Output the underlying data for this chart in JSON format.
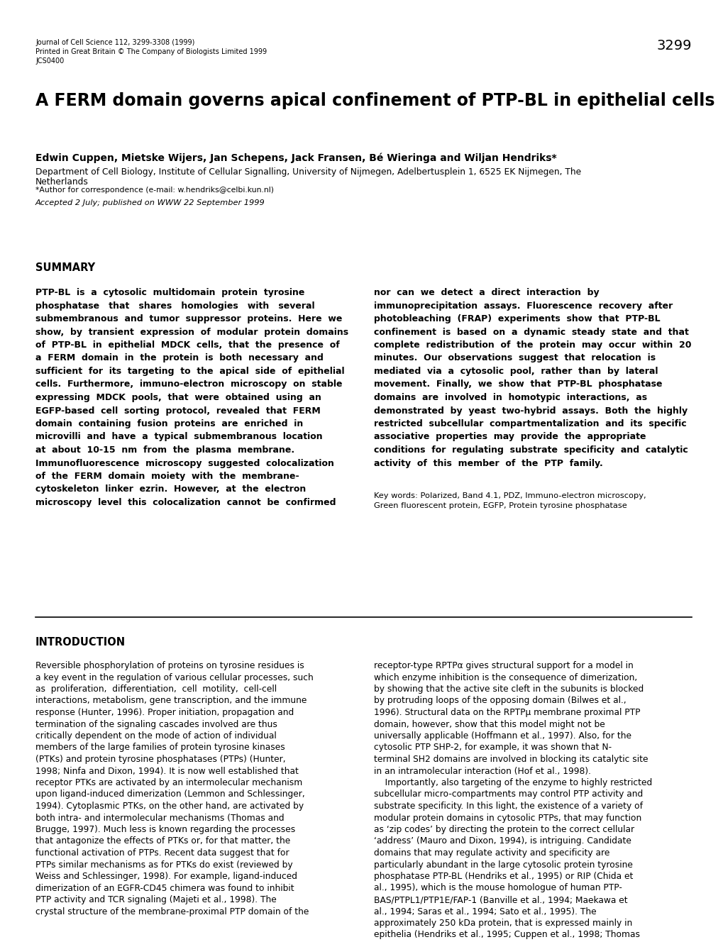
{
  "background_color": "#ffffff",
  "page_width": 10.2,
  "page_height": 13.28,
  "dpi": 100,
  "journal_line1": "Journal of Cell Science 112, 3299-3308 (1999)",
  "journal_line2": "Printed in Great Britain © The Company of Biologists Limited 1999",
  "journal_line3": "JCS0400",
  "page_number": "3299",
  "title": "A FERM domain governs apical confinement of PTP-BL in epithelial cells",
  "authors": "Edwin Cuppen, Mietske Wijers, Jan Schepens, Jack Fransen, Bé Wieringa and Wiljan Hendriks*",
  "affiliation_line1": "Department of Cell Biology, Institute of Cellular Signalling, University of Nijmegen, Adelbertusplein 1, 6525 EK Nijmegen, The",
  "affiliation_line2": "Netherlands",
  "correspondence": "*Author for correspondence (e-mail: w.hendriks@celbi.kun.nl)",
  "accepted": "Accepted 2 July; published on WWW 22 September 1999",
  "summary_header": "SUMMARY",
  "summary_left_lines": [
    "PTP-BL  is  a  cytosolic  multidomain  protein  tyrosine",
    "phosphatase   that   shares   homologies   with   several",
    "submembranous  and  tumor  suppressor  proteins.  Here  we",
    "show,  by  transient  expression  of  modular  protein  domains",
    "of  PTP-BL  in  epithelial  MDCK  cells,  that  the  presence  of",
    "a  FERM  domain  in  the  protein  is  both  necessary  and",
    "sufficient  for  its  targeting  to  the  apical  side  of  epithelial",
    "cells.  Furthermore,  immuno-electron  microscopy  on  stable",
    "expressing  MDCK  pools,  that  were  obtained  using  an",
    "EGFP-based  cell  sorting  protocol,  revealed  that  FERM",
    "domain  containing  fusion  proteins  are  enriched  in",
    "microvilli  and  have  a  typical  submembranous  location",
    "at  about  10-15  nm  from  the  plasma  membrane.",
    "Immunofluorescence  microscopy  suggested  colocalization",
    "of  the  FERM  domain  moiety  with  the  membrane-",
    "cytoskeleton  linker  ezrin.  However,  at  the  electron",
    "microscopy  level  this  colocalization  cannot  be  confirmed"
  ],
  "summary_right_lines": [
    "nor  can  we  detect  a  direct  interaction  by",
    "immunoprecipitation  assays.  Fluorescence  recovery  after",
    "photobleaching  (FRAP)  experiments  show  that  PTP-BL",
    "confinement  is  based  on  a  dynamic  steady  state  and  that",
    "complete  redistribution  of  the  protein  may  occur  within  20",
    "minutes.  Our  observations  suggest  that  relocation  is",
    "mediated  via  a  cytosolic  pool,  rather  than  by  lateral",
    "movement.  Finally,  we  show  that  PTP-BL  phosphatase",
    "domains  are  involved  in  homotypic  interactions,  as",
    "demonstrated  by  yeast  two-hybrid  assays.  Both  the  highly",
    "restricted  subcellular  compartmentalization  and  its  specific",
    "associative  properties  may  provide  the  appropriate",
    "conditions  for  regulating  substrate  specificity  and  catalytic",
    "activity  of  this  member  of  the  PTP  family."
  ],
  "keywords_line1": "Key words: Polarized, Band 4.1, PDZ, Immuno-electron microscopy,",
  "keywords_line2": "Green fluorescent protein, EGFP, Protein tyrosine phosphatase",
  "intro_header": "INTRODUCTION",
  "intro_left_lines": [
    "Reversible phosphorylation of proteins on tyrosine residues is",
    "a key event in the regulation of various cellular processes, such",
    "as  proliferation,  differentiation,  cell  motility,  cell-cell",
    "interactions, metabolism, gene transcription, and the immune",
    "response (Hunter, 1996). Proper initiation, propagation and",
    "termination of the signaling cascades involved are thus",
    "critically dependent on the mode of action of individual",
    "members of the large families of protein tyrosine kinases",
    "(PTKs) and protein tyrosine phosphatases (PTPs) (Hunter,",
    "1998; Ninfa and Dixon, 1994). It is now well established that",
    "receptor PTKs are activated by an intermolecular mechanism",
    "upon ligand-induced dimerization (Lemmon and Schlessinger,",
    "1994). Cytoplasmic PTKs, on the other hand, are activated by",
    "both intra- and intermolecular mechanisms (Thomas and",
    "Brugge, 1997). Much less is known regarding the processes",
    "that antagonize the effects of PTKs or, for that matter, the",
    "functional activation of PTPs. Recent data suggest that for",
    "PTPs similar mechanisms as for PTKs do exist (reviewed by",
    "Weiss and Schlessinger, 1998). For example, ligand-induced",
    "dimerization of an EGFR-CD45 chimera was found to inhibit",
    "PTP activity and TCR signaling (Majeti et al., 1998). The",
    "crystal structure of the membrane-proximal PTP domain of the"
  ],
  "intro_right_lines": [
    "receptor-type RPTPα gives structural support for a model in",
    "which enzyme inhibition is the consequence of dimerization,",
    "by showing that the active site cleft in the subunits is blocked",
    "by protruding loops of the opposing domain (Bilwes et al.,",
    "1996). Structural data on the RPTPμ membrane proximal PTP",
    "domain, however, show that this model might not be",
    "universally applicable (Hoffmann et al., 1997). Also, for the",
    "cytosolic PTP SHP-2, for example, it was shown that N-",
    "terminal SH2 domains are involved in blocking its catalytic site",
    "in an intramolecular interaction (Hof et al., 1998).",
    "    Importantly, also targeting of the enzyme to highly restricted",
    "subcellular micro-compartments may control PTP activity and",
    "substrate specificity. In this light, the existence of a variety of",
    "modular protein domains in cytosolic PTPs, that may function",
    "as ‘zip codes’ by directing the protein to the correct cellular",
    "‘address’ (Mauro and Dixon, 1994), is intriguing. Candidate",
    "domains that may regulate activity and specificity are",
    "particularly abundant in the large cytosolic protein tyrosine",
    "phosphatase PTP-BL (Hendriks et al., 1995) or RIP (Chida et",
    "al., 1995), which is the mouse homologue of human PTP-",
    "BAS/PTPL1/PTP1E/FAP-1 (Banville et al., 1994; Maekawa et",
    "al., 1994; Saras et al., 1994; Sato et al., 1995). The",
    "approximately 250 kDa protein, that is expressed mainly in",
    "epithelia (Hendriks et al., 1995; Cuppen et al., 1998; Thomas"
  ]
}
